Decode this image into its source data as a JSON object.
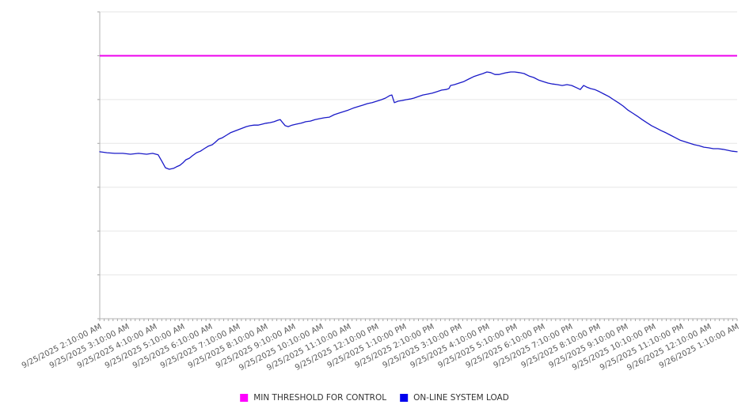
{
  "page": {
    "background": "#ffffff"
  },
  "colors": {
    "threshold_line": "#ee00ee",
    "load_line": "#1a1ac8",
    "gridline": "#e6e6e6",
    "axis_line": "#b3b3b3",
    "tick": "#a6a6a6",
    "axis_label_text": "#595959",
    "legend_text": "#333333"
  },
  "legend": {
    "position": "bottom-center",
    "items": [
      {
        "label": "MIN THRESHOLD FOR CONTROL",
        "color": "#ff00ff"
      },
      {
        "label": "ON-LINE SYSTEM LOAD",
        "color": "#0000ee"
      }
    ]
  },
  "chart_data": {
    "type": "line",
    "title": "",
    "xlabel": "",
    "ylabel": "",
    "y_axis_unlabeled": true,
    "ylim": [
      0,
      100
    ],
    "y_gridline_count": 8,
    "grid": "horizontal",
    "legend_position": "bottom-center",
    "x_hours_range": [
      0,
      23
    ],
    "x_minor_ticks_per_hour": 6,
    "x_labels_rotation_deg": -27,
    "x_tick_labels": [
      "9/25/2025 2:10:00 AM",
      "9/25/2025 3:10:00 AM",
      "9/25/2025 4:10:00 AM",
      "9/25/2025 5:10:00 AM",
      "9/25/2025 6:10:00 AM",
      "9/25/2025 7:10:00 AM",
      "9/25/2025 8:10:00 AM",
      "9/25/2025 9:10:00 AM",
      "9/25/2025 10:10:00 AM",
      "9/25/2025 11:10:00 AM",
      "9/25/2025 12:10:00 PM",
      "9/25/2025 1:10:00 PM",
      "9/25/2025 2:10:00 PM",
      "9/25/2025 3:10:00 PM",
      "9/25/2025 4:10:00 PM",
      "9/25/2025 5:10:00 PM",
      "9/25/2025 6:10:00 PM",
      "9/25/2025 7:10:00 PM",
      "9/25/2025 8:10:00 PM",
      "9/25/2025 9:10:00 PM",
      "9/25/2025 10:10:00 PM",
      "9/25/2025 11:10:00 PM",
      "9/26/2025 12:10:00 AM",
      "9/26/2025 1:10:00 AM"
    ],
    "series": [
      {
        "name": "MIN THRESHOLD FOR CONTROL",
        "type": "constant",
        "color": "#ee00ee",
        "value": 85.7
      },
      {
        "name": "ON-LINE SYSTEM LOAD",
        "type": "line",
        "color": "#1a1ac8",
        "points_format": "[hours_since_2:10AM, value_0_100]",
        "points": [
          [
            0,
            54.4
          ],
          [
            0.26,
            54.1
          ],
          [
            0.54,
            53.9
          ],
          [
            0.83,
            53.9
          ],
          [
            1.11,
            53.6
          ],
          [
            1.4,
            53.9
          ],
          [
            1.69,
            53.6
          ],
          [
            1.91,
            53.9
          ],
          [
            2.11,
            53.4
          ],
          [
            2.26,
            51
          ],
          [
            2.37,
            49.2
          ],
          [
            2.51,
            48.7
          ],
          [
            2.66,
            49
          ],
          [
            2.77,
            49.5
          ],
          [
            2.89,
            50
          ],
          [
            3,
            50.8
          ],
          [
            3.11,
            51.8
          ],
          [
            3.23,
            52.3
          ],
          [
            3.34,
            53.1
          ],
          [
            3.49,
            54.1
          ],
          [
            3.63,
            54.6
          ],
          [
            3.77,
            55.4
          ],
          [
            3.91,
            56.2
          ],
          [
            4.06,
            56.7
          ],
          [
            4.17,
            57.5
          ],
          [
            4.29,
            58.5
          ],
          [
            4.43,
            59
          ],
          [
            4.57,
            59.8
          ],
          [
            4.71,
            60.6
          ],
          [
            4.86,
            61.1
          ],
          [
            5,
            61.6
          ],
          [
            5.14,
            62.1
          ],
          [
            5.29,
            62.6
          ],
          [
            5.43,
            62.9
          ],
          [
            5.57,
            63.1
          ],
          [
            5.71,
            63.1
          ],
          [
            5.86,
            63.4
          ],
          [
            6,
            63.7
          ],
          [
            6.14,
            63.9
          ],
          [
            6.29,
            64.2
          ],
          [
            6.43,
            64.7
          ],
          [
            6.51,
            64.9
          ],
          [
            6.6,
            63.9
          ],
          [
            6.69,
            62.9
          ],
          [
            6.8,
            62.6
          ],
          [
            6.94,
            63.1
          ],
          [
            7.09,
            63.4
          ],
          [
            7.26,
            63.7
          ],
          [
            7.43,
            64.2
          ],
          [
            7.6,
            64.4
          ],
          [
            7.77,
            64.9
          ],
          [
            7.94,
            65.2
          ],
          [
            8.11,
            65.5
          ],
          [
            8.29,
            65.7
          ],
          [
            8.46,
            66.5
          ],
          [
            8.63,
            67
          ],
          [
            8.8,
            67.5
          ],
          [
            8.97,
            68
          ],
          [
            9.14,
            68.6
          ],
          [
            9.31,
            69.1
          ],
          [
            9.49,
            69.6
          ],
          [
            9.66,
            70.1
          ],
          [
            9.83,
            70.4
          ],
          [
            10,
            70.9
          ],
          [
            10.17,
            71.4
          ],
          [
            10.31,
            71.9
          ],
          [
            10.46,
            72.7
          ],
          [
            10.54,
            72.9
          ],
          [
            10.63,
            70.4
          ],
          [
            10.77,
            70.9
          ],
          [
            10.91,
            71.1
          ],
          [
            11.06,
            71.4
          ],
          [
            11.2,
            71.6
          ],
          [
            11.34,
            71.9
          ],
          [
            11.49,
            72.4
          ],
          [
            11.66,
            72.9
          ],
          [
            11.83,
            73.2
          ],
          [
            12,
            73.5
          ],
          [
            12.17,
            74
          ],
          [
            12.34,
            74.5
          ],
          [
            12.49,
            74.7
          ],
          [
            12.6,
            75
          ],
          [
            12.66,
            76
          ],
          [
            12.8,
            76.3
          ],
          [
            12.97,
            76.8
          ],
          [
            13.14,
            77.3
          ],
          [
            13.31,
            78.1
          ],
          [
            13.49,
            78.9
          ],
          [
            13.66,
            79.4
          ],
          [
            13.83,
            79.9
          ],
          [
            13.97,
            80.4
          ],
          [
            14.11,
            80.2
          ],
          [
            14.26,
            79.6
          ],
          [
            14.4,
            79.6
          ],
          [
            14.54,
            79.9
          ],
          [
            14.69,
            80.2
          ],
          [
            14.83,
            80.4
          ],
          [
            14.97,
            80.4
          ],
          [
            15.14,
            80.2
          ],
          [
            15.31,
            79.9
          ],
          [
            15.49,
            79.1
          ],
          [
            15.66,
            78.6
          ],
          [
            15.83,
            77.8
          ],
          [
            16,
            77.3
          ],
          [
            16.17,
            76.8
          ],
          [
            16.34,
            76.5
          ],
          [
            16.51,
            76.3
          ],
          [
            16.69,
            76
          ],
          [
            16.86,
            76.3
          ],
          [
            17.03,
            76
          ],
          [
            17.2,
            75.3
          ],
          [
            17.34,
            74.7
          ],
          [
            17.46,
            76
          ],
          [
            17.57,
            75.5
          ],
          [
            17.71,
            75
          ],
          [
            17.86,
            74.7
          ],
          [
            18.03,
            74
          ],
          [
            18.2,
            73.2
          ],
          [
            18.37,
            72.4
          ],
          [
            18.54,
            71.4
          ],
          [
            18.71,
            70.4
          ],
          [
            18.89,
            69.3
          ],
          [
            19.06,
            68
          ],
          [
            19.23,
            67
          ],
          [
            19.4,
            66
          ],
          [
            19.57,
            64.9
          ],
          [
            19.74,
            63.9
          ],
          [
            19.91,
            62.9
          ],
          [
            20.09,
            62.1
          ],
          [
            20.26,
            61.3
          ],
          [
            20.43,
            60.6
          ],
          [
            20.6,
            59.8
          ],
          [
            20.77,
            59
          ],
          [
            20.94,
            58.2
          ],
          [
            21.11,
            57.7
          ],
          [
            21.29,
            57.2
          ],
          [
            21.46,
            56.7
          ],
          [
            21.63,
            56.4
          ],
          [
            21.8,
            55.9
          ],
          [
            21.97,
            55.7
          ],
          [
            22.14,
            55.4
          ],
          [
            22.31,
            55.4
          ],
          [
            22.49,
            55.2
          ],
          [
            22.66,
            54.9
          ],
          [
            22.83,
            54.6
          ],
          [
            23,
            54.4
          ]
        ]
      }
    ]
  }
}
